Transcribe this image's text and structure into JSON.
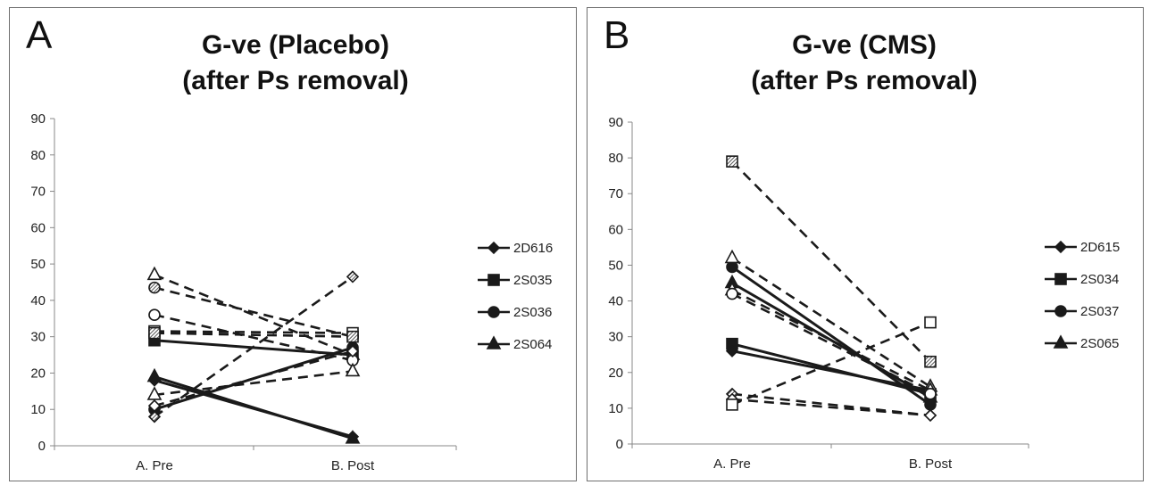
{
  "colors": {
    "line": "#1a1a1a",
    "hatch_fill": "#555555",
    "axis": "#888888"
  },
  "chart_data": [
    {
      "type": "line",
      "panel_label": "A",
      "title_line1": "G-ve (Placebo)",
      "title_line2": "(after Ps removal)",
      "categories": [
        "A. Pre",
        "B. Post"
      ],
      "ylim": [
        0,
        90
      ],
      "yticks": [
        "0",
        "10",
        "20",
        "30",
        "40",
        "50",
        "60",
        "70",
        "80",
        "90"
      ],
      "legend": [
        "2D616",
        "2S035",
        "2S036",
        "2S064"
      ],
      "legend_markers": [
        "diamond",
        "square",
        "circle",
        "triangle"
      ],
      "series": [
        {
          "values": [
            19,
            2
          ],
          "marker": "triangle",
          "fill": "filled",
          "dash": false
        },
        {
          "values": [
            18,
            2.5
          ],
          "marker": "diamond",
          "fill": "filled",
          "dash": false
        },
        {
          "values": [
            29,
            25
          ],
          "marker": "square",
          "fill": "filled",
          "dash": false
        },
        {
          "values": [
            10,
            27
          ],
          "marker": "circle",
          "fill": "filled",
          "dash": false
        },
        {
          "values": [
            47,
            25
          ],
          "marker": "triangle",
          "fill": "open",
          "dash": true
        },
        {
          "values": [
            43.5,
            30
          ],
          "marker": "circle",
          "fill": "half",
          "dash": true
        },
        {
          "values": [
            36,
            23.5
          ],
          "marker": "circle",
          "fill": "open",
          "dash": true
        },
        {
          "values": [
            31.5,
            31
          ],
          "marker": "square",
          "fill": "open",
          "dash": true
        },
        {
          "values": [
            31,
            30
          ],
          "marker": "square",
          "fill": "hatch",
          "dash": true
        },
        {
          "values": [
            14,
            20.5
          ],
          "marker": "triangle",
          "fill": "open",
          "dash": true
        },
        {
          "values": [
            11,
            26
          ],
          "marker": "diamond",
          "fill": "open",
          "dash": true
        },
        {
          "values": [
            8,
            46.5
          ],
          "marker": "diamond",
          "fill": "hatch",
          "dash": true
        }
      ]
    },
    {
      "type": "line",
      "panel_label": "B",
      "title_line1": "G-ve (CMS)",
      "title_line2": "(after Ps removal)",
      "categories": [
        "A. Pre",
        "B. Post"
      ],
      "ylim": [
        0,
        90
      ],
      "yticks": [
        "0",
        "10",
        "20",
        "30",
        "40",
        "50",
        "60",
        "70",
        "80",
        "90"
      ],
      "legend": [
        "2D615",
        "2S034",
        "2S037",
        "2S065"
      ],
      "legend_markers": [
        "diamond",
        "square",
        "circle",
        "triangle"
      ],
      "series": [
        {
          "values": [
            49.5,
            11
          ],
          "marker": "circle",
          "fill": "filled",
          "dash": false
        },
        {
          "values": [
            45,
            13
          ],
          "marker": "triangle",
          "fill": "filled",
          "dash": false
        },
        {
          "values": [
            28,
            14
          ],
          "marker": "square",
          "fill": "filled",
          "dash": false
        },
        {
          "values": [
            26,
            15
          ],
          "marker": "diamond",
          "fill": "filled",
          "dash": false
        },
        {
          "values": [
            79,
            23
          ],
          "marker": "square",
          "fill": "hatch",
          "dash": true
        },
        {
          "values": [
            52,
            16
          ],
          "marker": "triangle",
          "fill": "open",
          "dash": true
        },
        {
          "values": [
            43,
            15
          ],
          "marker": "triangle",
          "fill": "open",
          "dash": true
        },
        {
          "values": [
            42,
            14
          ],
          "marker": "circle",
          "fill": "open",
          "dash": true
        },
        {
          "values": [
            14,
            8
          ],
          "marker": "diamond",
          "fill": "hatch",
          "dash": true
        },
        {
          "values": [
            12.5,
            8
          ],
          "marker": "diamond",
          "fill": "open",
          "dash": true
        },
        {
          "values": [
            11,
            34
          ],
          "marker": "square",
          "fill": "open",
          "dash": true
        }
      ]
    }
  ]
}
